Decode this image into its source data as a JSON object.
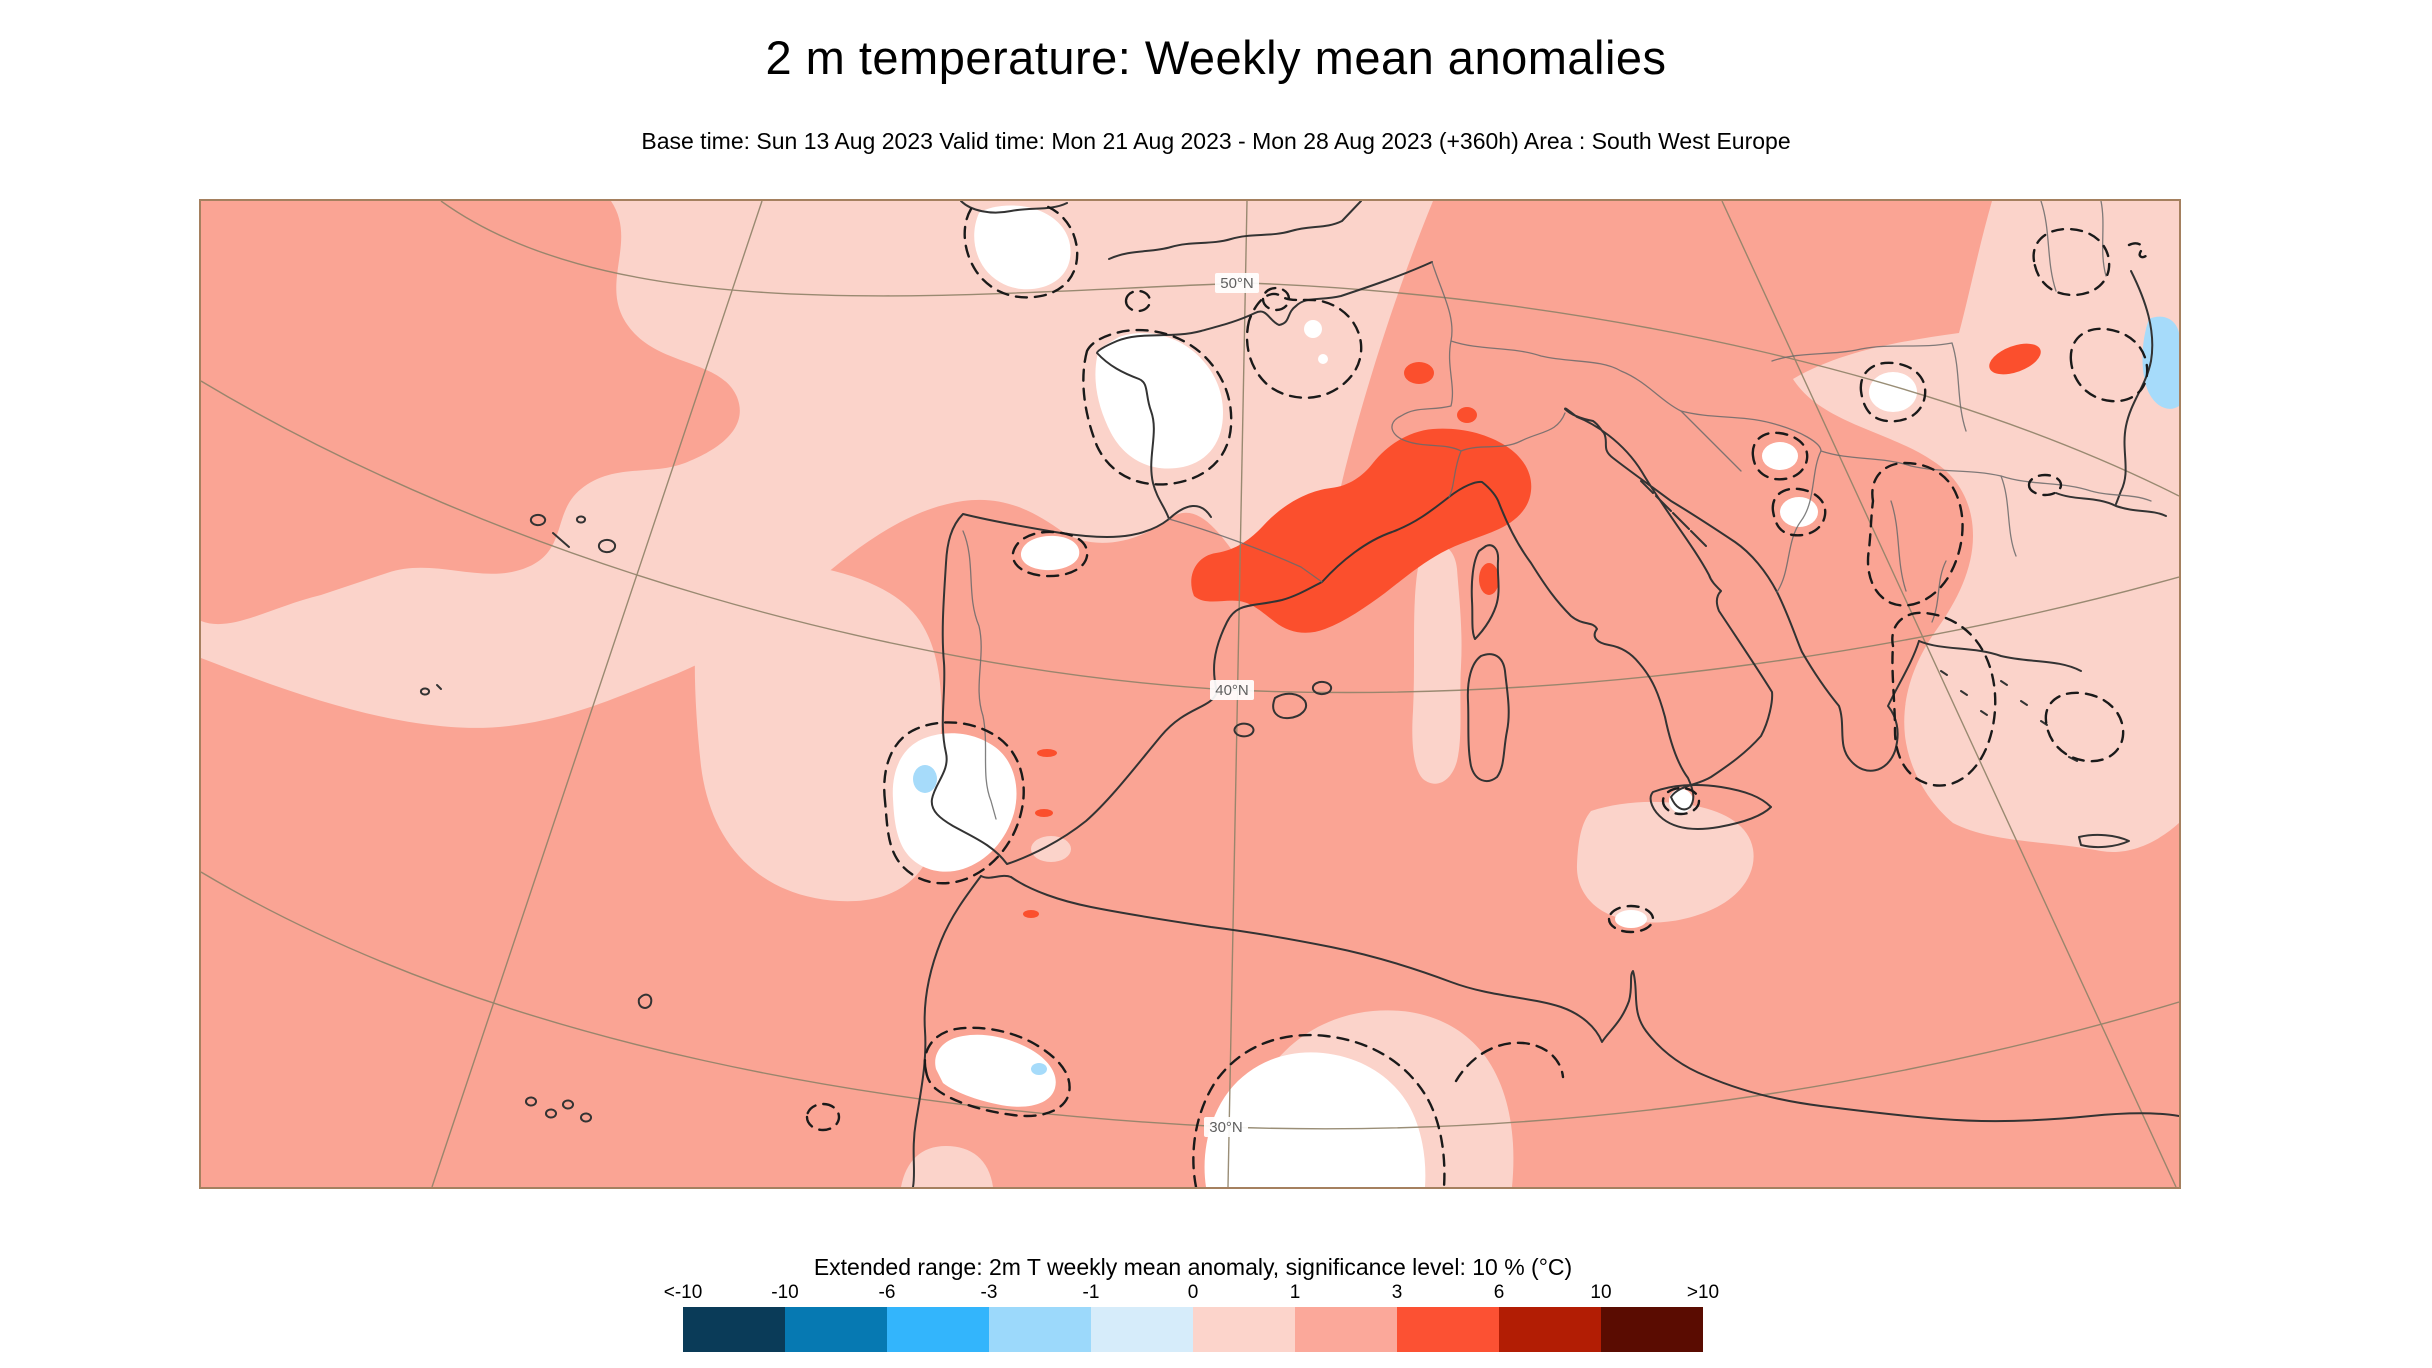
{
  "header": {
    "title": "2 m temperature: Weekly mean anomalies",
    "subtitle": "Base time: Sun 13 Aug 2023 Valid time: Mon 21 Aug 2023 - Mon 28 Aug 2023 (+360h) Area : South West Europe"
  },
  "legend": {
    "title": "Extended range: 2m T weekly mean anomaly, significance level: 10 % (°C)",
    "tick_labels": [
      "<-10",
      "-10",
      "-6",
      "-3",
      "-1",
      "0",
      "1",
      "3",
      "6",
      "10",
      ">10"
    ],
    "colors": [
      "#0a3b58",
      "#0679b2",
      "#33b5fc",
      "#9cd9fb",
      "#d6ecfa",
      "#fcd4cb",
      "#fba89a",
      "#fc5133",
      "#b21d04",
      "#5a0c01"
    ],
    "bin_edges": [
      -10,
      -6,
      -3,
      -1,
      0,
      1,
      3,
      6,
      10
    ],
    "units": "°C"
  },
  "map": {
    "graticule_labels": [
      "50°N",
      "40°N",
      "30°N"
    ],
    "colors": {
      "anomaly_0_1": "#fbd3ca",
      "anomaly_1_3": "#faa494",
      "anomaly_3_6": "#fb4f2d",
      "anomaly_negative": "#a6dbfa",
      "non_significant": "#ffffff",
      "coastline": "#333333",
      "country_border": "#6a6a6a",
      "graticule": "#8f8268",
      "significance_contour": "#1a1a1a",
      "frame": "#a5805f"
    }
  }
}
